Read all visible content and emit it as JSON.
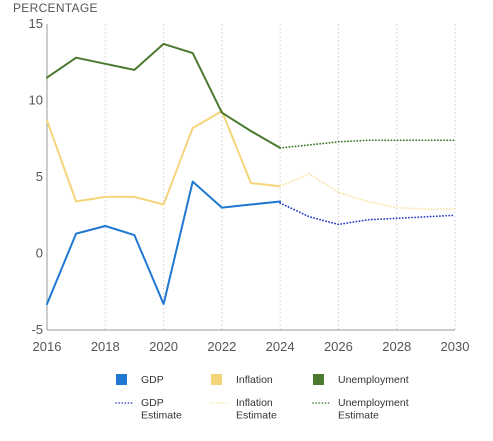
{
  "chart_data": {
    "type": "line",
    "ylabel": "PERCENTAGE",
    "xlim": [
      2016,
      2030
    ],
    "ylim": [
      -5,
      15
    ],
    "x_ticks": [
      2016,
      2018,
      2020,
      2022,
      2024,
      2026,
      2028,
      2030
    ],
    "y_ticks": [
      -5,
      0,
      5,
      10,
      15
    ],
    "grid": "vertical-dotted",
    "legend_placement": "bottom",
    "series": [
      {
        "name": "GDP",
        "color": "#1f78d1",
        "style": "solid",
        "x": [
          2016,
          2017,
          2018,
          2019,
          2020,
          2021,
          2022,
          2023,
          2024
        ],
        "values": [
          -3.3,
          1.3,
          1.8,
          1.2,
          -3.3,
          4.7,
          3.0,
          3.2,
          3.4
        ]
      },
      {
        "name": "Inflation",
        "color": "#f5d57a",
        "style": "solid",
        "x": [
          2016,
          2017,
          2018,
          2019,
          2020,
          2021,
          2022,
          2023,
          2024
        ],
        "values": [
          8.7,
          3.4,
          3.7,
          3.7,
          3.2,
          8.2,
          9.3,
          4.6,
          4.4
        ]
      },
      {
        "name": "Unemployment",
        "color": "#4a7a30",
        "style": "solid",
        "x": [
          2016,
          2017,
          2018,
          2019,
          2020,
          2021,
          2022,
          2023,
          2024
        ],
        "values": [
          11.5,
          12.8,
          12.4,
          12.0,
          13.7,
          13.1,
          9.2,
          8.0,
          6.9
        ]
      },
      {
        "name": "GDP Estimate",
        "legend_lines": [
          "GDP",
          "Estimate"
        ],
        "color": "#2a3fc8",
        "style": "dotted",
        "x": [
          2024,
          2025,
          2026,
          2027,
          2028,
          2029,
          2030
        ],
        "values": [
          3.3,
          2.4,
          1.9,
          2.2,
          2.3,
          2.4,
          2.5
        ]
      },
      {
        "name": "Inflation Estimate",
        "legend_lines": [
          "Inflation",
          "Estimate"
        ],
        "color": "#f8e3a0",
        "style": "dotted",
        "x": [
          2024,
          2025,
          2026,
          2027,
          2028,
          2029,
          2030
        ],
        "values": [
          4.4,
          5.2,
          4.0,
          3.4,
          3.0,
          2.9,
          2.9
        ]
      },
      {
        "name": "Unemployment Estimate",
        "legend_lines": [
          "Unemployment",
          "Estimate"
        ],
        "color": "#3a7a2a",
        "style": "dotted",
        "x": [
          2024,
          2025,
          2026,
          2027,
          2028,
          2029,
          2030
        ],
        "values": [
          6.9,
          7.1,
          7.3,
          7.4,
          7.4,
          7.4,
          7.4
        ]
      }
    ]
  }
}
